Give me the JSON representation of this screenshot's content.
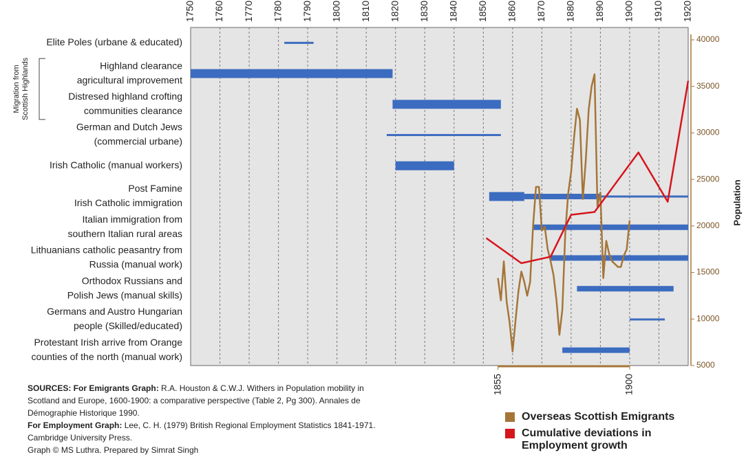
{
  "chart_data": {
    "type": "timeline",
    "axis_label_side": "Migration from Scottish Highlands",
    "group_label": [
      "Migration from",
      "Scottish Highlands"
    ],
    "group_rows": [
      1,
      2
    ],
    "y2label": "Population",
    "xlim": [
      1750,
      1920
    ],
    "xticks": [
      1750,
      1760,
      1770,
      1780,
      1790,
      1800,
      1810,
      1820,
      1830,
      1840,
      1850,
      1860,
      1870,
      1880,
      1890,
      1900,
      1910,
      1920
    ],
    "x2ticks": [
      1855,
      1900
    ],
    "y2lim": [
      5000,
      40000
    ],
    "y2ticks": [
      5000,
      10000,
      15000,
      20000,
      25000,
      30000,
      35000,
      40000
    ],
    "grid": true,
    "bar_color": "#3c6cc0",
    "rows": [
      {
        "label": [
          "Elite Poles (urbane & educated)"
        ],
        "spans": [
          {
            "start": 1782,
            "end": 1792,
            "weight": "thin"
          }
        ]
      },
      {
        "label": [
          "Highland clearance",
          "agricultural improvement"
        ],
        "spans": [
          {
            "start": 1750,
            "end": 1819,
            "weight": "thick"
          }
        ]
      },
      {
        "label": [
          "Distresed  highland crofting",
          "communities clearance"
        ],
        "spans": [
          {
            "start": 1819,
            "end": 1856,
            "weight": "thick"
          }
        ]
      },
      {
        "label": [
          "German and Dutch Jews",
          "(commercial urbane)"
        ],
        "spans": [
          {
            "start": 1817,
            "end": 1856,
            "weight": "thin"
          }
        ]
      },
      {
        "label": [
          "Irish Catholic (manual workers)"
        ],
        "spans": [
          {
            "start": 1820,
            "end": 1840,
            "weight": "thick"
          }
        ]
      },
      {
        "label": [
          "Post Famine",
          "Irish Catholic immigration"
        ],
        "spans": [
          {
            "start": 1852,
            "end": 1864,
            "weight": "thick"
          },
          {
            "start": 1864,
            "end": 1890,
            "weight": "medium"
          },
          {
            "start": 1890,
            "end": 1920,
            "weight": "thin"
          }
        ]
      },
      {
        "label": [
          "Italian immigration from",
          "southern Italian rural areas"
        ],
        "spans": [
          {
            "start": 1867,
            "end": 1920,
            "weight": "medium"
          }
        ]
      },
      {
        "label": [
          "Lithuanians catholic peasantry from",
          "Russia (manual work)"
        ],
        "spans": [
          {
            "start": 1873,
            "end": 1920,
            "weight": "medium"
          }
        ]
      },
      {
        "label": [
          "Orthodox Russians and",
          "Polish Jews (manual skills)"
        ],
        "spans": [
          {
            "start": 1882,
            "end": 1915,
            "weight": "medium"
          }
        ]
      },
      {
        "label": [
          "Germans and Austro Hungarian",
          "people (Skilled/educated)"
        ],
        "spans": [
          {
            "start": 1900,
            "end": 1912,
            "weight": "thin"
          }
        ]
      },
      {
        "label": [
          "Protestant Irish arrive from Orange",
          "counties of the north (manual work)"
        ],
        "spans": [
          {
            "start": 1877,
            "end": 1900,
            "weight": "medium"
          }
        ]
      }
    ],
    "series": [
      {
        "name": "Overseas Scottish Emigrants",
        "color": "#a57538",
        "axis": "y2",
        "x": [
          1855,
          1856,
          1857,
          1858,
          1859,
          1860,
          1861,
          1862,
          1863,
          1864,
          1865,
          1866,
          1867,
          1868,
          1869,
          1870,
          1871,
          1872,
          1873,
          1874,
          1875,
          1876,
          1877,
          1878,
          1879,
          1880,
          1881,
          1882,
          1883,
          1884,
          1885,
          1886,
          1887,
          1888,
          1889,
          1890,
          1891,
          1892,
          1893,
          1894,
          1895,
          1896,
          1897,
          1898,
          1899,
          1900
        ],
        "values": [
          14400,
          12000,
          16200,
          11800,
          9600,
          6500,
          9800,
          13000,
          15100,
          14000,
          12500,
          14000,
          20000,
          24200,
          24200,
          19500,
          19900,
          17500,
          16200,
          14700,
          12000,
          8300,
          11000,
          19200,
          23500,
          25800,
          29500,
          32600,
          31400,
          22900,
          27000,
          32500,
          35000,
          36300,
          22100,
          23600,
          14400,
          18400,
          17000,
          16200,
          15900,
          15600,
          15600,
          16800,
          17500,
          20600
        ]
      },
      {
        "name": "Cumulative deviations in Employment growth",
        "color": "#d6141c",
        "axis": "y2",
        "x": [
          1851,
          1863,
          1873,
          1880,
          1888,
          1903,
          1913,
          1920
        ],
        "values": [
          18700,
          16000,
          16700,
          21200,
          21500,
          27900,
          22600,
          35600
        ]
      }
    ]
  },
  "sources": {
    "emigrants_head": "SOURCES:  For Emigrants Graph:",
    "emigrants_text": "R.A. Houston & C.W.J. Withers in Population mobility in Scotland and Europe, 1600-1900: a comparative perspective (Table 2, Pg 300). Annales de Démographie Historique 1990.",
    "employment_head": "For Employment  Graph:",
    "employment_text": "Lee, C. H. (1979) British Regional Employment Statistics 1841-1971. Cambridge University Press.",
    "credit": "Graph © MS Luthra. Prepared by Simrat Singh"
  }
}
